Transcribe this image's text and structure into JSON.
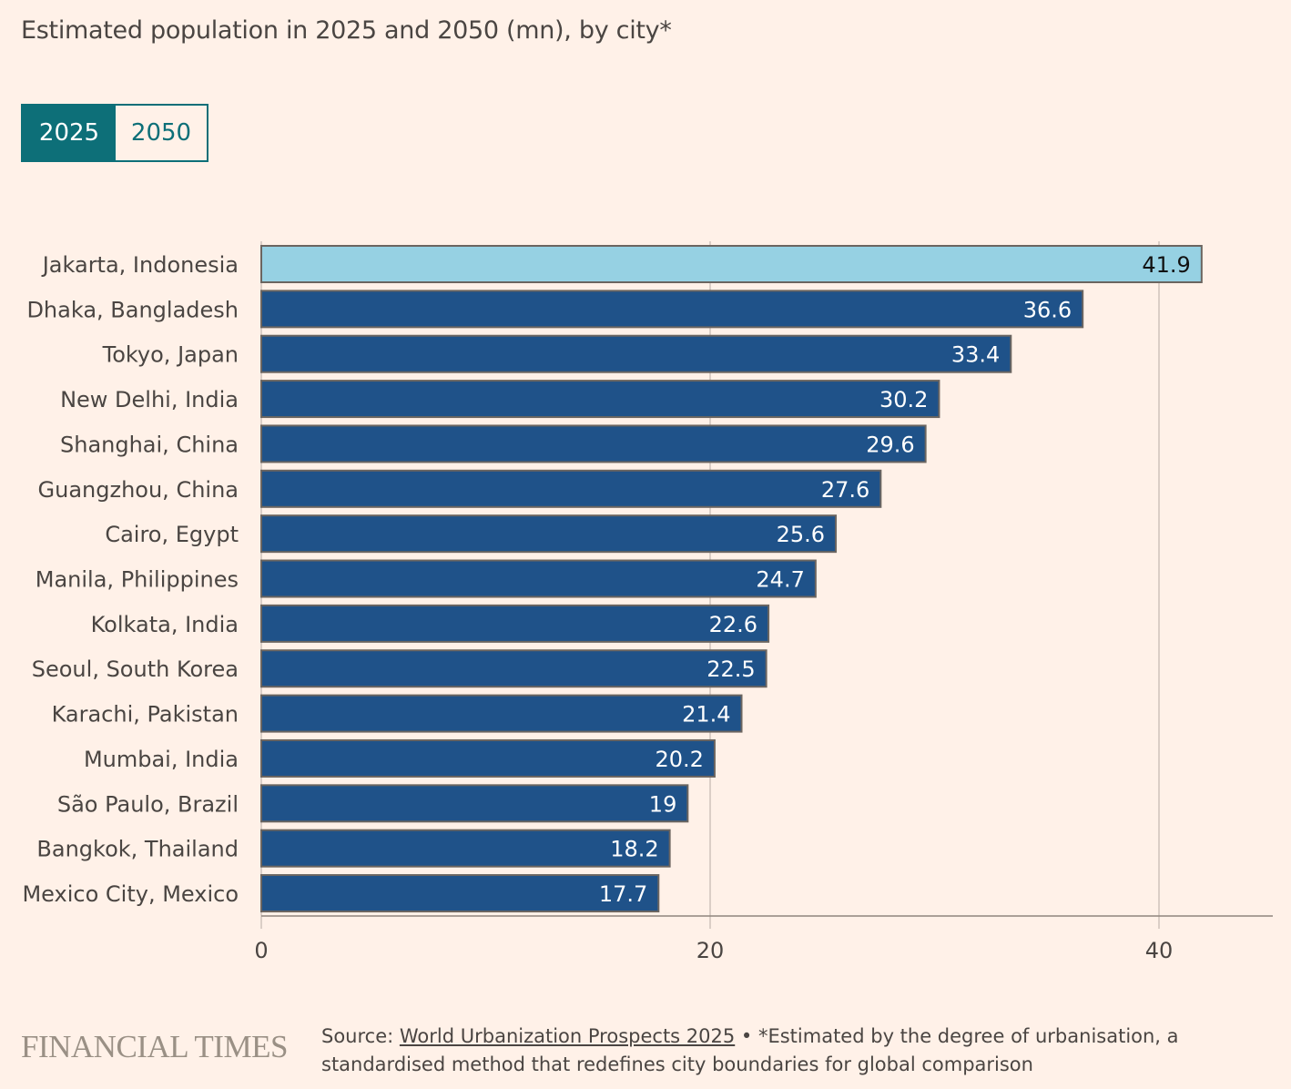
{
  "title": "Estimated population in 2025 and 2050 (mn), by city*",
  "toggle": {
    "options": [
      "2025",
      "2050"
    ],
    "selected": "2025"
  },
  "chart_data": {
    "type": "bar",
    "orientation": "horizontal",
    "categories": [
      "Jakarta, Indonesia",
      "Dhaka, Bangladesh",
      "Tokyo, Japan",
      "New Delhi, India",
      "Shanghai, China",
      "Guangzhou, China",
      "Cairo, Egypt",
      "Manila, Philippines",
      "Kolkata, India",
      "Seoul, South Korea",
      "Karachi, Pakistan",
      "Mumbai, India",
      "São Paulo, Brazil",
      "Bangkok, Thailand",
      "Mexico City, Mexico"
    ],
    "values": [
      41.9,
      36.6,
      33.4,
      30.2,
      29.6,
      27.6,
      25.6,
      24.7,
      22.6,
      22.5,
      21.4,
      20.2,
      19,
      18.2,
      17.7
    ],
    "labels": [
      "41.9",
      "36.6",
      "33.4",
      "30.2",
      "29.6",
      "27.6",
      "25.6",
      "24.7",
      "22.6",
      "22.5",
      "21.4",
      "20.2",
      "19",
      "18.2",
      "17.7"
    ],
    "highlight_index": 0,
    "xlim": [
      0,
      45
    ],
    "xticks": [
      0,
      20,
      40
    ],
    "xtick_labels": [
      "0",
      "20",
      "40"
    ],
    "grid": true,
    "colors": {
      "bar": "#1f5289",
      "highlight": "#96d1e3",
      "bar_edge": "#6b6560",
      "grid": "#cfc3ba",
      "axis": "#8f857d"
    }
  },
  "footer": {
    "brand": "FINANCIAL TIMES",
    "source_prefix": "Source: ",
    "source_link": "World Urbanization Prospects 2025",
    "note": " • *Estimated by the degree of urbanisation, a standardised method that redefines city boundaries for global comparison"
  }
}
